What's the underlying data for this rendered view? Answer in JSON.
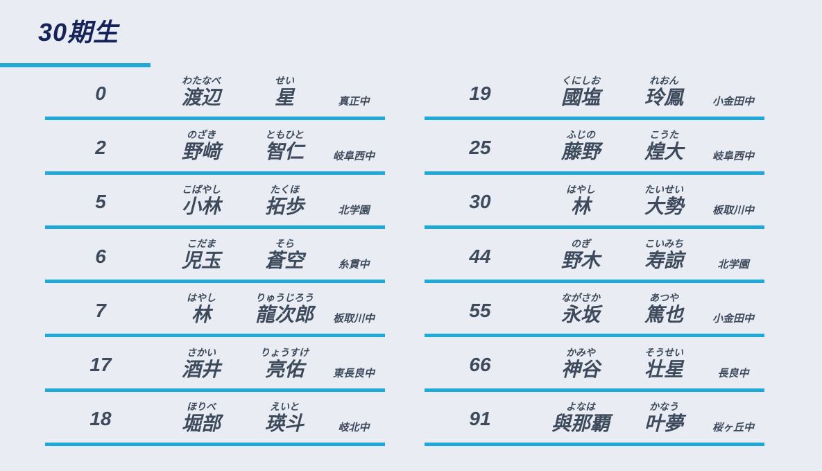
{
  "page": {
    "title": "30期生"
  },
  "colors": {
    "background": "#e9edf3",
    "accent": "#1fa9d8",
    "text": "#3d4a5c",
    "title_text": "#16235a"
  },
  "roster": {
    "columns": [
      {
        "rows": [
          {
            "number": "0",
            "family_kana": "わたなべ",
            "family": "渡辺",
            "given_kana": "せい",
            "given": "星",
            "school": "真正中"
          },
          {
            "number": "2",
            "family_kana": "のざき",
            "family": "野﨑",
            "given_kana": "ともひと",
            "given": "智仁",
            "school": "岐阜西中"
          },
          {
            "number": "5",
            "family_kana": "こばやし",
            "family": "小林",
            "given_kana": "たくほ",
            "given": "拓歩",
            "school": "北学園"
          },
          {
            "number": "6",
            "family_kana": "こだま",
            "family": "児玉",
            "given_kana": "そら",
            "given": "蒼空",
            "school": "糸貫中"
          },
          {
            "number": "7",
            "family_kana": "はやし",
            "family": "林",
            "given_kana": "りゅうじろう",
            "given": "龍次郎",
            "school": "板取川中"
          },
          {
            "number": "17",
            "family_kana": "さかい",
            "family": "酒井",
            "given_kana": "りょうすけ",
            "given": "亮佑",
            "school": "東長良中"
          },
          {
            "number": "18",
            "family_kana": "ほりべ",
            "family": "堀部",
            "given_kana": "えいと",
            "given": "瑛斗",
            "school": "岐北中"
          }
        ]
      },
      {
        "rows": [
          {
            "number": "19",
            "family_kana": "くにしお",
            "family": "國塩",
            "given_kana": "れおん",
            "given": "玲鳳",
            "school": "小金田中"
          },
          {
            "number": "25",
            "family_kana": "ふじの",
            "family": "藤野",
            "given_kana": "こうた",
            "given": "煌大",
            "school": "岐阜西中"
          },
          {
            "number": "30",
            "family_kana": "はやし",
            "family": "林",
            "given_kana": "たいせい",
            "given": "大勢",
            "school": "板取川中"
          },
          {
            "number": "44",
            "family_kana": "のぎ",
            "family": "野木",
            "given_kana": "こいみち",
            "given": "寿諒",
            "school": "北学園"
          },
          {
            "number": "55",
            "family_kana": "ながさか",
            "family": "永坂",
            "given_kana": "あつや",
            "given": "篤也",
            "school": "小金田中"
          },
          {
            "number": "66",
            "family_kana": "かみや",
            "family": "神谷",
            "given_kana": "そうせい",
            "given": "壮星",
            "school": "長良中"
          },
          {
            "number": "91",
            "family_kana": "よなは",
            "family": "與那覇",
            "given_kana": "かなう",
            "given": "叶夢",
            "school": "桜ヶ丘中"
          }
        ]
      }
    ]
  }
}
